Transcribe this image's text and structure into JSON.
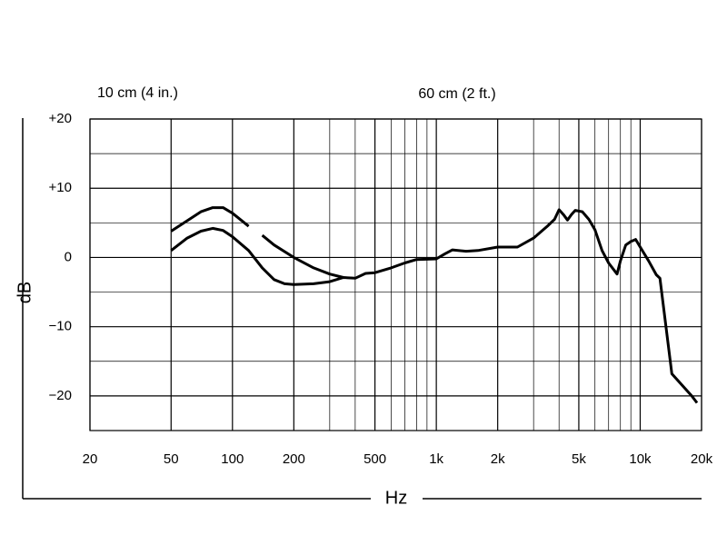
{
  "chart_data": {
    "type": "line",
    "x_label": "Hz",
    "y_label": "dB",
    "log_x": true,
    "xlim": [
      20,
      20000
    ],
    "ylim": [
      -25,
      20
    ],
    "xticks": [
      20,
      50,
      100,
      200,
      500,
      {
        "value": 1000,
        "label": "1k"
      },
      {
        "value": 2000,
        "label": "2k"
      },
      {
        "value": 5000,
        "label": "5k"
      },
      {
        "value": 10000,
        "label": "10k"
      },
      {
        "value": 20000,
        "label": "20k"
      }
    ],
    "xgrid": [
      300,
      400,
      600,
      700,
      800,
      900,
      3000,
      4000,
      6000,
      7000,
      8000,
      9000
    ],
    "yticks": [
      {
        "value": 20,
        "label": "+20"
      },
      {
        "value": 10,
        "label": "+10"
      },
      0,
      {
        "value": -10,
        "label": "−10"
      },
      {
        "value": -20,
        "label": "−20"
      }
    ],
    "ygrid": [
      15,
      5,
      -5,
      -15
    ],
    "series": [
      {
        "name": "10 cm (4 in.)",
        "color": "#000000",
        "x": [
          50,
          60,
          70,
          80,
          90,
          100,
          120,
          130,
          140,
          160,
          200,
          250,
          300,
          350
        ],
        "values": [
          3.8,
          5.3,
          6.6,
          7.2,
          7.2,
          6.4,
          4.5,
          null,
          3.2,
          1.8,
          0.0,
          -1.5,
          -2.4,
          -2.9
        ]
      },
      {
        "name": "60 cm (2 ft.)",
        "color": "#000000",
        "x": [
          50,
          60,
          70,
          80,
          90,
          100,
          120,
          140,
          160,
          180,
          200,
          250,
          300,
          350,
          400,
          450,
          500,
          600,
          700,
          800,
          1000,
          1100,
          1200,
          1400,
          1600,
          2000,
          2500,
          3000,
          3500,
          3800,
          4000,
          4200,
          4400,
          4600,
          4800,
          5200,
          5600,
          6000,
          6500,
          7000,
          7700,
          8000,
          8500,
          9000,
          9500,
          10000,
          11000,
          12000,
          12500,
          14300,
          17900,
          19000
        ],
        "values": [
          1.0,
          2.8,
          3.8,
          4.2,
          3.9,
          3.0,
          1.0,
          -1.5,
          -3.2,
          -3.8,
          -3.9,
          -3.8,
          -3.5,
          -2.9,
          -3.0,
          -2.3,
          -2.2,
          -1.5,
          -0.8,
          -0.3,
          -0.2,
          0.5,
          1.1,
          0.9,
          1.0,
          1.5,
          1.5,
          2.8,
          4.5,
          5.5,
          6.9,
          6.2,
          5.4,
          6.2,
          6.8,
          6.6,
          5.5,
          4.0,
          1.0,
          -0.8,
          -2.4,
          -0.5,
          1.8,
          2.3,
          2.6,
          1.5,
          -0.5,
          -2.5,
          -3.0,
          -16.8,
          -20.0,
          -21.0
        ]
      }
    ]
  }
}
